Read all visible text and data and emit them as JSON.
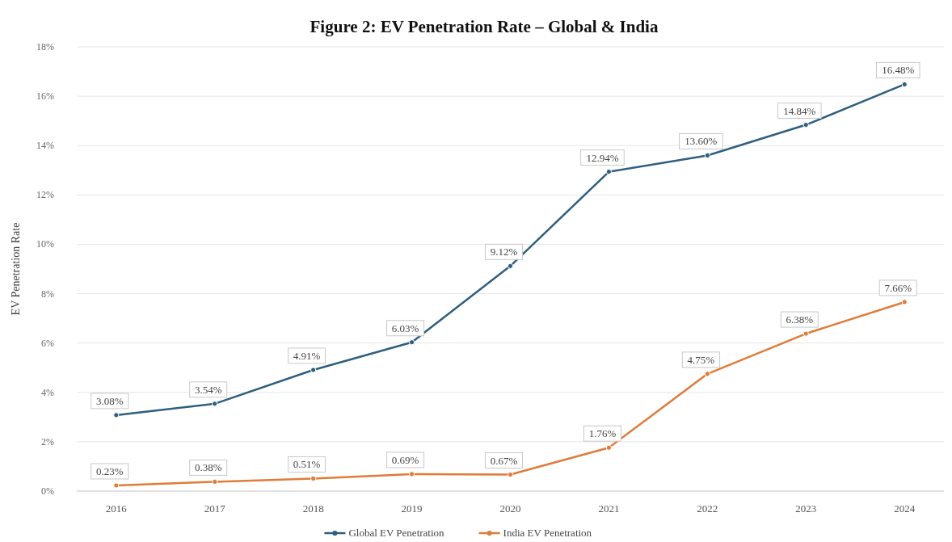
{
  "chart_data": {
    "type": "line",
    "title": "Figure 2: EV Penetration Rate – Global & India",
    "ylabel": "EV Penetration Rate",
    "categories": [
      "2016",
      "2017",
      "2018",
      "2019",
      "2020",
      "2021",
      "2022",
      "2023",
      "2024"
    ],
    "series": [
      {
        "name": "Global EV Penetration",
        "color": "#2e5f7f",
        "values": [
          3.08,
          3.54,
          4.91,
          6.03,
          9.12,
          12.94,
          13.6,
          14.84,
          16.48
        ],
        "value_labels": [
          "3.08%",
          "3.54%",
          "4.91%",
          "6.03%",
          "9.12%",
          "12.94%",
          "13.60%",
          "14.84%",
          "16.48%"
        ]
      },
      {
        "name": "India EV Penetration",
        "color": "#e07b39",
        "values": [
          0.23,
          0.38,
          0.51,
          0.69,
          0.67,
          1.76,
          4.75,
          6.38,
          7.66
        ],
        "value_labels": [
          "0.23%",
          "0.38%",
          "0.51%",
          "0.69%",
          "0.67%",
          "1.76%",
          "4.75%",
          "6.38%",
          "7.66%"
        ]
      }
    ],
    "ylim": [
      0,
      18
    ],
    "yticks": [
      {
        "value": 0,
        "label": "0%"
      },
      {
        "value": 2,
        "label": "2%"
      },
      {
        "value": 4,
        "label": "4%"
      },
      {
        "value": 6,
        "label": "6%"
      },
      {
        "value": 8,
        "label": "8%"
      },
      {
        "value": 10,
        "label": "10%"
      },
      {
        "value": 12,
        "label": "12%"
      },
      {
        "value": 14,
        "label": "14%"
      },
      {
        "value": 16,
        "label": "16%"
      },
      {
        "value": 18,
        "label": "18%"
      }
    ],
    "grid": "y",
    "legend": "bottom",
    "marker": "circle",
    "line_style": "solid"
  }
}
